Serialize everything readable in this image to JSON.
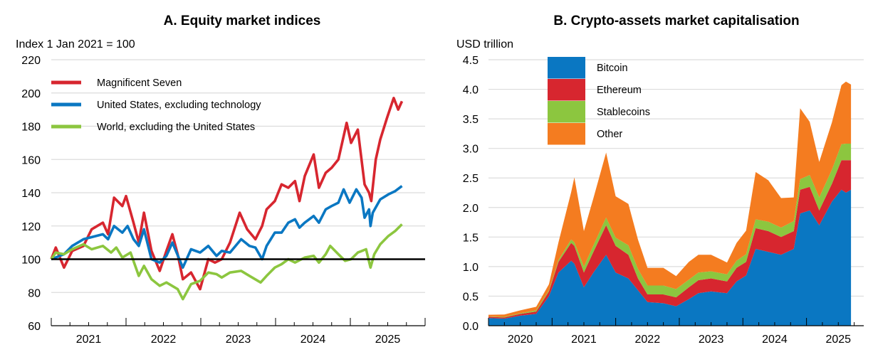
{
  "chart_data": [
    {
      "type": "line",
      "title": "A. Equity market indices",
      "ylabel": "Index 1 Jan 2021 = 100",
      "xlabel": "",
      "xlim": [
        2021.0,
        2026.0
      ],
      "ylim": [
        60,
        220
      ],
      "yticks": [
        60,
        80,
        100,
        120,
        140,
        160,
        180,
        200,
        220
      ],
      "xtick_labels": [
        "2021",
        "2022",
        "2023",
        "2024",
        "2025"
      ],
      "reference_line": 100,
      "grid": true,
      "legend_position": "top-left",
      "series": [
        {
          "name": "Magnificent Seven",
          "color": "#d7262f",
          "x": [
            2021.0,
            2021.06,
            2021.17,
            2021.28,
            2021.43,
            2021.54,
            2021.69,
            2021.76,
            2021.84,
            2021.95,
            2022.0,
            2022.1,
            2022.17,
            2022.24,
            2022.34,
            2022.45,
            2022.54,
            2022.62,
            2022.69,
            2022.76,
            2022.87,
            2022.99,
            2023.1,
            2023.19,
            2023.28,
            2023.39,
            2023.52,
            2023.62,
            2023.73,
            2023.82,
            2023.88,
            2023.99,
            2024.08,
            2024.17,
            2024.26,
            2024.32,
            2024.39,
            2024.51,
            2024.58,
            2024.67,
            2024.75,
            2024.84,
            2024.95,
            2025.01,
            2025.1,
            2025.19,
            2025.25,
            2025.28,
            2025.34,
            2025.4,
            2025.49,
            2025.58,
            2025.64,
            2025.69
          ],
          "y": [
            100,
            107,
            95,
            105,
            108,
            118,
            122,
            115,
            137,
            132,
            138,
            122,
            110,
            128,
            105,
            93,
            105,
            115,
            103,
            88,
            92,
            82,
            100,
            98,
            100,
            110,
            128,
            118,
            112,
            120,
            130,
            135,
            145,
            143,
            147,
            135,
            150,
            163,
            143,
            152,
            155,
            160,
            182,
            170,
            178,
            145,
            140,
            135,
            160,
            172,
            185,
            197,
            190,
            195
          ]
        },
        {
          "name": "United States, excluding technology",
          "color": "#0a77c2",
          "x": [
            2021.0,
            2021.17,
            2021.28,
            2021.43,
            2021.69,
            2021.76,
            2021.84,
            2021.95,
            2022.02,
            2022.1,
            2022.17,
            2022.24,
            2022.34,
            2022.45,
            2022.54,
            2022.62,
            2022.76,
            2022.87,
            2022.99,
            2023.1,
            2023.21,
            2023.28,
            2023.39,
            2023.54,
            2023.65,
            2023.73,
            2023.82,
            2023.88,
            2023.99,
            2024.08,
            2024.17,
            2024.26,
            2024.32,
            2024.39,
            2024.51,
            2024.58,
            2024.67,
            2024.75,
            2024.84,
            2024.91,
            2024.99,
            2025.08,
            2025.15,
            2025.19,
            2025.25,
            2025.27,
            2025.3,
            2025.4,
            2025.51,
            2025.6,
            2025.69
          ],
          "y": [
            100,
            103,
            108,
            112,
            115,
            112,
            120,
            116,
            120,
            112,
            108,
            118,
            100,
            98,
            102,
            110,
            95,
            106,
            104,
            108,
            102,
            105,
            104,
            112,
            108,
            107,
            100,
            108,
            116,
            116,
            122,
            124,
            119,
            122,
            126,
            122,
            130,
            132,
            134,
            142,
            134,
            142,
            137,
            125,
            130,
            120,
            128,
            136,
            139,
            141,
            144
          ]
        },
        {
          "name": "World, excluding the United States",
          "color": "#8cc63f",
          "x": [
            2021.0,
            2021.06,
            2021.17,
            2021.28,
            2021.43,
            2021.54,
            2021.69,
            2021.8,
            2021.87,
            2021.95,
            2022.06,
            2022.17,
            2022.24,
            2022.34,
            2022.45,
            2022.54,
            2022.69,
            2022.76,
            2022.87,
            2022.99,
            2023.1,
            2023.21,
            2023.28,
            2023.39,
            2023.54,
            2023.65,
            2023.8,
            2023.88,
            2023.99,
            2024.08,
            2024.17,
            2024.26,
            2024.39,
            2024.51,
            2024.58,
            2024.67,
            2024.73,
            2024.84,
            2024.93,
            2025.01,
            2025.1,
            2025.21,
            2025.27,
            2025.32,
            2025.4,
            2025.51,
            2025.6,
            2025.69
          ],
          "y": [
            100,
            104,
            103,
            106,
            109,
            106,
            108,
            104,
            107,
            101,
            104,
            90,
            96,
            88,
            84,
            86,
            82,
            76,
            85,
            87,
            92,
            91,
            89,
            92,
            93,
            90,
            86,
            90,
            95,
            97,
            100,
            98,
            101,
            102,
            98,
            103,
            108,
            103,
            99,
            100,
            104,
            106,
            95,
            103,
            109,
            114,
            117,
            121
          ]
        }
      ]
    },
    {
      "type": "area",
      "stacked": true,
      "title": "B. Crypto-assets market capitalisation",
      "ylabel": "USD trillion",
      "xlabel": "",
      "xlim": [
        2020.0,
        2025.9
      ],
      "ylim": [
        0,
        4.5
      ],
      "yticks": [
        "0.0",
        "0.5",
        "1.0",
        "1.5",
        "2.0",
        "2.5",
        "3.0",
        "3.5",
        "4.0",
        "4.5"
      ],
      "xtick_labels": [
        "2020",
        "2021",
        "2022",
        "2023",
        "2024",
        "2025"
      ],
      "grid": true,
      "legend_position": "top-left",
      "x": [
        2020.0,
        2020.25,
        2020.5,
        2020.75,
        2020.95,
        2021.1,
        2021.3,
        2021.35,
        2021.5,
        2021.65,
        2021.85,
        2022.0,
        2022.2,
        2022.35,
        2022.5,
        2022.75,
        2022.95,
        2023.15,
        2023.3,
        2023.5,
        2023.75,
        2023.9,
        2024.05,
        2024.2,
        2024.4,
        2024.6,
        2024.8,
        2024.9,
        2025.05,
        2025.2,
        2025.4,
        2025.55,
        2025.62,
        2025.7
      ],
      "series": [
        {
          "name": "Bitcoin",
          "color": "#0a77c2",
          "values": [
            0.13,
            0.12,
            0.17,
            0.2,
            0.5,
            0.9,
            1.1,
            1.05,
            0.65,
            0.9,
            1.2,
            0.9,
            0.8,
            0.6,
            0.4,
            0.38,
            0.33,
            0.45,
            0.55,
            0.58,
            0.55,
            0.75,
            0.85,
            1.3,
            1.25,
            1.2,
            1.3,
            1.9,
            1.95,
            1.7,
            2.1,
            2.3,
            2.25,
            2.3
          ]
        },
        {
          "name": "Ethereum",
          "color": "#d7262f",
          "values": [
            0.02,
            0.02,
            0.03,
            0.04,
            0.08,
            0.18,
            0.3,
            0.3,
            0.25,
            0.35,
            0.5,
            0.45,
            0.4,
            0.2,
            0.13,
            0.15,
            0.15,
            0.2,
            0.22,
            0.22,
            0.2,
            0.23,
            0.23,
            0.35,
            0.35,
            0.3,
            0.3,
            0.4,
            0.4,
            0.25,
            0.3,
            0.5,
            0.55,
            0.5
          ]
        },
        {
          "name": "Stablecoins",
          "color": "#8cc63f",
          "values": [
            0.005,
            0.01,
            0.01,
            0.02,
            0.02,
            0.03,
            0.06,
            0.06,
            0.1,
            0.11,
            0.13,
            0.14,
            0.16,
            0.16,
            0.15,
            0.15,
            0.14,
            0.13,
            0.13,
            0.12,
            0.12,
            0.12,
            0.13,
            0.15,
            0.16,
            0.16,
            0.17,
            0.18,
            0.2,
            0.22,
            0.24,
            0.27,
            0.28,
            0.28
          ]
        },
        {
          "name": "Other",
          "color": "#f47c20",
          "values": [
            0.03,
            0.04,
            0.05,
            0.06,
            0.1,
            0.3,
            0.8,
            1.1,
            0.6,
            0.8,
            1.1,
            0.7,
            0.7,
            0.5,
            0.3,
            0.3,
            0.22,
            0.3,
            0.3,
            0.28,
            0.2,
            0.3,
            0.4,
            0.8,
            0.7,
            0.5,
            0.4,
            1.2,
            0.9,
            0.6,
            0.8,
            1.0,
            1.05,
            1.0
          ]
        }
      ]
    }
  ]
}
